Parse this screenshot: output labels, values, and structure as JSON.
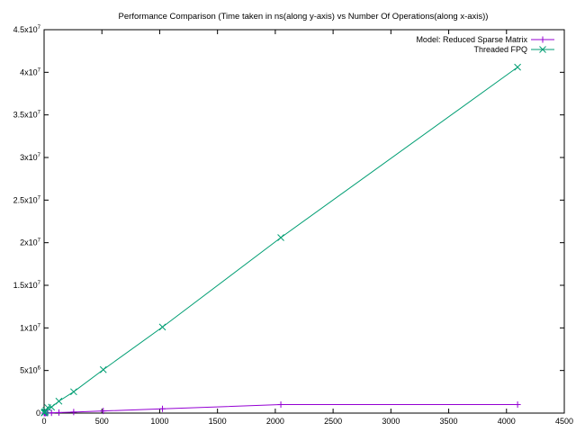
{
  "colors": {
    "series1": "#9400d3",
    "series2": "#009e73",
    "axis": "#000000"
  },
  "chart_data": {
    "type": "line",
    "title": "Performance Comparison (Time taken in ns(along y-axis) vs Number Of Operations(along x-axis))",
    "xlabel": "",
    "ylabel": "",
    "xlim": [
      0,
      4500
    ],
    "ylim": [
      0,
      45000000
    ],
    "x_ticks": [
      {
        "value": 0,
        "label": "0"
      },
      {
        "value": 500,
        "label": "500"
      },
      {
        "value": 1000,
        "label": "1000"
      },
      {
        "value": 1500,
        "label": "1500"
      },
      {
        "value": 2000,
        "label": "2000"
      },
      {
        "value": 2500,
        "label": "2500"
      },
      {
        "value": 3000,
        "label": "3000"
      },
      {
        "value": 3500,
        "label": "3500"
      },
      {
        "value": 4000,
        "label": "4000"
      },
      {
        "value": 4500,
        "label": "4500"
      }
    ],
    "y_ticks": [
      {
        "value": 0,
        "mant": "0",
        "exp": ""
      },
      {
        "value": 5000000,
        "mant": "5x10",
        "exp": "6"
      },
      {
        "value": 10000000,
        "mant": "1x10",
        "exp": "7"
      },
      {
        "value": 15000000,
        "mant": "1.5x10",
        "exp": "7"
      },
      {
        "value": 20000000,
        "mant": "2x10",
        "exp": "7"
      },
      {
        "value": 25000000,
        "mant": "2.5x10",
        "exp": "7"
      },
      {
        "value": 30000000,
        "mant": "3x10",
        "exp": "7"
      },
      {
        "value": 35000000,
        "mant": "3.5x10",
        "exp": "7"
      },
      {
        "value": 40000000,
        "mant": "4x10",
        "exp": "7"
      },
      {
        "value": 45000000,
        "mant": "4.5x10",
        "exp": "7"
      }
    ],
    "grid": false,
    "legend_position": "top-right",
    "series": [
      {
        "name": "Model: Reduced Sparse Matrix",
        "marker": "plus",
        "x": [
          1,
          2,
          4,
          8,
          16,
          32,
          64,
          128,
          256,
          512,
          1024,
          2048,
          4096
        ],
        "y": [
          500,
          1000,
          2000,
          4000,
          8000,
          16000,
          32000,
          64000,
          125000,
          250000,
          500000,
          1000000,
          1000000
        ]
      },
      {
        "name": "Threaded FPQ",
        "marker": "cross",
        "x": [
          1,
          2,
          4,
          8,
          16,
          32,
          64,
          128,
          256,
          512,
          1024,
          2048,
          4096
        ],
        "y": [
          20000,
          40000,
          80000,
          160000,
          320000,
          640000,
          700000,
          1400000,
          2500000,
          5100000,
          10100000,
          20600000,
          40600000
        ]
      }
    ]
  }
}
